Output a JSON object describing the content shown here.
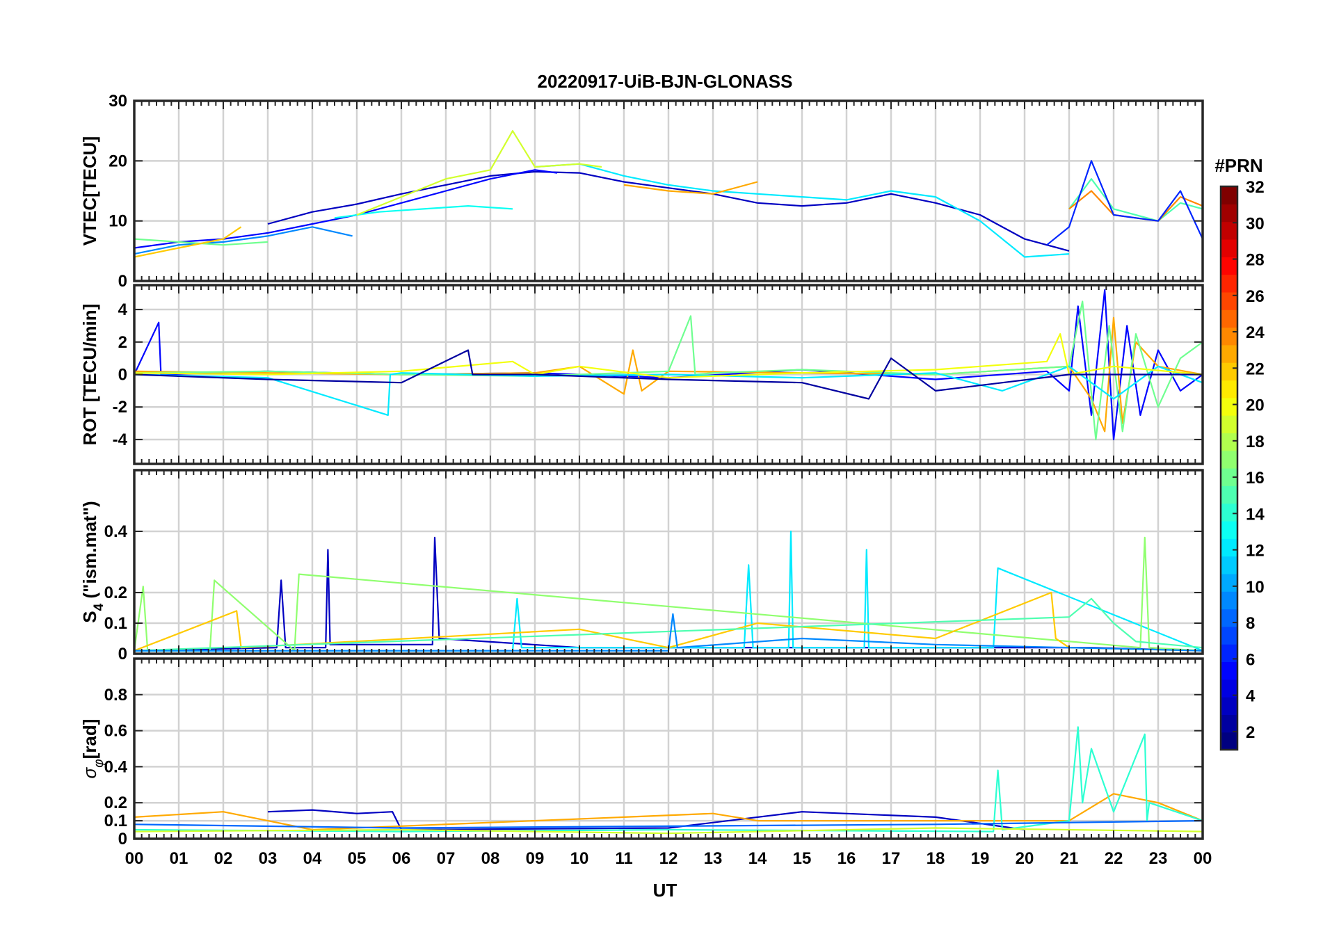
{
  "chart_data": {
    "type": "line",
    "title": "20220917-UiB-BJN-GLONASS",
    "xlabel": "UT",
    "x_tick_labels": [
      "00",
      "01",
      "02",
      "03",
      "04",
      "05",
      "06",
      "07",
      "08",
      "09",
      "10",
      "11",
      "12",
      "13",
      "14",
      "15",
      "16",
      "17",
      "18",
      "19",
      "20",
      "21",
      "22",
      "23",
      "00"
    ],
    "xlim": [
      0,
      24
    ],
    "grid": true,
    "colorbar": {
      "label": "#PRN",
      "range": [
        1,
        32
      ],
      "ticks": [
        2,
        4,
        6,
        8,
        10,
        12,
        14,
        16,
        18,
        20,
        22,
        24,
        26,
        28,
        30,
        32
      ],
      "colormap": "jet"
    },
    "panels": [
      {
        "id": "vtec",
        "ylabel": "VTEC[TECU]",
        "ylim": [
          0,
          30
        ],
        "yticks": [
          0,
          10,
          20,
          30
        ],
        "series": [
          {
            "prn": 3,
            "x": [
              3.0,
              4.0,
              5.0,
              6.0,
              7.0,
              8.0,
              9.0,
              10.0,
              11.0,
              12.0,
              13.0,
              14.0,
              15.0,
              16.0,
              17.0,
              18.0,
              19.0,
              20.0,
              21.0
            ],
            "values": [
              9.5,
              11.5,
              12.8,
              14.5,
              16.0,
              17.5,
              18.2,
              18.0,
              16.5,
              15.5,
              14.5,
              13.0,
              12.5,
              13.0,
              14.5,
              13.0,
              11.0,
              7.0,
              5.0
            ]
          },
          {
            "prn": 5,
            "x": [
              0.0,
              1.0,
              2.0,
              3.0,
              4.0,
              5.0,
              6.0,
              7.0,
              8.0,
              9.0,
              9.5
            ],
            "values": [
              5.5,
              6.5,
              7.0,
              8.0,
              9.5,
              11.0,
              13.0,
              15.0,
              17.0,
              18.5,
              18.0
            ]
          },
          {
            "prn": 9,
            "x": [
              0.0,
              1.0,
              2.0,
              3.0,
              4.0,
              4.9
            ],
            "values": [
              4.5,
              6.0,
              6.5,
              7.5,
              9.0,
              7.5
            ]
          },
          {
            "prn": 13,
            "x": [
              4.5,
              5.5,
              6.5,
              7.5,
              8.5
            ],
            "values": [
              10.5,
              11.5,
              12.0,
              12.5,
              12.0
            ]
          },
          {
            "prn": 12,
            "x": [
              9.0,
              10.0,
              11.0,
              12.0,
              13.0,
              14.0,
              15.0,
              16.0,
              17.0,
              18.0,
              19.0,
              20.0,
              21.0
            ],
            "values": [
              19.0,
              19.5,
              17.5,
              16.0,
              15.0,
              14.5,
              14.0,
              13.5,
              15.0,
              14.0,
              10.0,
              4.0,
              4.5
            ]
          },
          {
            "prn": 16,
            "x": [
              0.0,
              1.0,
              2.0,
              3.0
            ],
            "values": [
              7.0,
              6.5,
              6.0,
              6.5
            ]
          },
          {
            "prn": 19,
            "x": [
              5.0,
              6.0,
              7.0,
              8.0,
              8.5,
              9.0,
              10.0,
              10.5
            ],
            "values": [
              11.0,
              14.0,
              17.0,
              18.5,
              25.0,
              19.0,
              19.5,
              19.0
            ]
          },
          {
            "prn": 22,
            "x": [
              0.0,
              1.0,
              2.0,
              2.4
            ],
            "values": [
              4.0,
              5.5,
              7.0,
              9.0
            ]
          },
          {
            "prn": 23,
            "x": [
              11.0,
              12.0,
              13.0,
              14.0
            ],
            "values": [
              16.0,
              15.0,
              14.5,
              16.5
            ]
          },
          {
            "prn": 15,
            "x": [
              21.0,
              21.5,
              22.0,
              23.0,
              23.5,
              24.0
            ],
            "values": [
              12.0,
              17.0,
              12.0,
              10.0,
              13.0,
              12.0
            ]
          },
          {
            "prn": 24,
            "x": [
              21.0,
              21.5,
              22.0,
              23.0,
              23.5,
              24.0
            ],
            "values": [
              12.0,
              15.0,
              11.0,
              10.0,
              14.0,
              12.5
            ]
          },
          {
            "prn": 6,
            "x": [
              20.5,
              21.0,
              21.5,
              22.0,
              23.0,
              23.5,
              24.0
            ],
            "values": [
              6.0,
              9.0,
              20.0,
              11.0,
              10.0,
              15.0,
              7.0
            ]
          }
        ]
      },
      {
        "id": "rot",
        "ylabel": "ROT [TECU/min]",
        "ylim": [
          -5.5,
          5.5
        ],
        "yticks": [
          -4,
          -2,
          0,
          2,
          4
        ],
        "series": [
          {
            "prn": 5,
            "x": [
              0.0,
              0.55,
              0.6,
              3.0,
              6.0,
              9.0,
              12.0,
              15.0,
              18.0,
              20.5,
              21.0,
              21.2,
              21.5,
              21.8,
              22.0,
              22.3,
              22.6,
              23.0,
              23.5,
              24.0
            ],
            "values": [
              0.0,
              3.2,
              0.0,
              0.2,
              0.0,
              0.1,
              -0.2,
              0.3,
              -0.3,
              0.2,
              -1.0,
              4.2,
              -2.5,
              5.2,
              -4.0,
              3.0,
              -2.5,
              1.5,
              -1.0,
              0.0
            ]
          },
          {
            "prn": 23,
            "x": [
              0.0,
              3.0,
              6.0,
              9.0,
              10.0,
              11.0,
              11.2,
              11.4,
              12.0,
              15.0,
              18.0,
              21.0,
              21.5,
              21.8,
              22.0,
              22.2,
              22.5,
              23.0,
              24.0
            ],
            "values": [
              0.2,
              0.1,
              0.0,
              0.1,
              0.5,
              -1.2,
              1.5,
              -1.0,
              0.2,
              0.1,
              0.0,
              0.5,
              -1.5,
              -3.5,
              3.5,
              -3.0,
              2.0,
              0.5,
              0.0
            ]
          },
          {
            "prn": 16,
            "x": [
              0.0,
              3.0,
              6.0,
              9.0,
              12.0,
              12.5,
              12.6,
              13.0,
              15.0,
              18.0,
              21.0,
              21.3,
              21.6,
              21.9,
              22.2,
              22.5,
              23.0,
              23.5,
              24.0
            ],
            "values": [
              0.1,
              0.2,
              0.0,
              -0.1,
              0.2,
              3.6,
              0.0,
              0.1,
              0.3,
              0.0,
              0.5,
              4.5,
              -4.0,
              3.0,
              -3.5,
              2.5,
              -2.0,
              1.0,
              2.0
            ]
          },
          {
            "prn": 12,
            "x": [
              0.0,
              3.0,
              5.7,
              5.75,
              6.0,
              9.0,
              12.0,
              15.0,
              18.0,
              19.5,
              21.0,
              22.0,
              23.0,
              24.0
            ],
            "values": [
              0.0,
              -0.2,
              -2.5,
              0.0,
              0.1,
              -0.1,
              0.0,
              -0.2,
              0.1,
              -1.0,
              0.5,
              -1.5,
              0.5,
              -0.5
            ]
          },
          {
            "prn": 20,
            "x": [
              0.0,
              3.0,
              6.0,
              8.5,
              9.0,
              10.0,
              12.0,
              15.0,
              18.0,
              20.5,
              20.8,
              21.0,
              22.0,
              24.0
            ],
            "values": [
              0.1,
              0.0,
              0.2,
              0.8,
              0.0,
              0.5,
              -0.2,
              0.1,
              0.3,
              0.8,
              2.5,
              0.0,
              0.5,
              0.0
            ]
          },
          {
            "prn": 2,
            "x": [
              0.0,
              3.0,
              6.0,
              7.5,
              7.6,
              9.0,
              12.0,
              15.0,
              16.5,
              17.0,
              18.0,
              21.0,
              24.0
            ],
            "values": [
              0.0,
              -0.3,
              -0.5,
              1.5,
              0.0,
              0.0,
              -0.3,
              -0.5,
              -1.5,
              1.0,
              -1.0,
              0.0,
              0.0
            ]
          }
        ]
      },
      {
        "id": "s4",
        "ylabel": "S4 (\"ism.mat\")",
        "ylabel_main": "S",
        "ylabel_sub": "4",
        "ylabel_rest": " (\"ism.mat\")",
        "ylim": [
          0,
          0.6
        ],
        "yticks": [
          0,
          0.1,
          0.2,
          0.4
        ],
        "ytick_labels": [
          "0",
          "0.1",
          "0.2",
          "0.4"
        ],
        "series": [
          {
            "prn": 3,
            "x": [
              0.0,
              3.2,
              3.3,
              3.4,
              4.3,
              4.35,
              4.4,
              6.7,
              6.75,
              6.85,
              10.0,
              12.5,
              18.0,
              21.5,
              24.0
            ],
            "values": [
              0.01,
              0.02,
              0.24,
              0.02,
              0.02,
              0.34,
              0.03,
              0.03,
              0.38,
              0.05,
              0.02,
              0.02,
              0.02,
              0.02,
              0.01
            ]
          },
          {
            "prn": 12,
            "x": [
              0.0,
              8.5,
              8.6,
              8.7,
              13.7,
              13.8,
              13.9,
              14.7,
              14.75,
              14.8,
              16.4,
              16.45,
              16.5,
              19.3,
              19.4,
              24.0
            ],
            "values": [
              0.01,
              0.01,
              0.18,
              0.02,
              0.02,
              0.29,
              0.02,
              0.02,
              0.4,
              0.02,
              0.02,
              0.34,
              0.02,
              0.02,
              0.28,
              0.01
            ]
          },
          {
            "prn": 17,
            "x": [
              0.0,
              0.2,
              0.3,
              1.7,
              1.8,
              3.6,
              3.7,
              22.6,
              22.7,
              22.8,
              24.0
            ],
            "values": [
              0.01,
              0.22,
              0.01,
              0.01,
              0.24,
              0.01,
              0.26,
              0.02,
              0.38,
              0.02,
              0.01
            ]
          },
          {
            "prn": 22,
            "x": [
              0.0,
              2.3,
              2.4,
              10.0,
              12.0,
              14.0,
              18.0,
              20.6,
              20.7,
              21.0,
              24.0
            ],
            "values": [
              0.01,
              0.14,
              0.02,
              0.08,
              0.02,
              0.1,
              0.05,
              0.2,
              0.05,
              0.02,
              0.01
            ]
          },
          {
            "prn": 15,
            "x": [
              0.0,
              21.0,
              21.5,
              22.0,
              22.5,
              24.0
            ],
            "values": [
              0.01,
              0.12,
              0.18,
              0.1,
              0.04,
              0.02
            ]
          },
          {
            "prn": 9,
            "x": [
              0.0,
              12.0,
              12.1,
              12.2,
              15.0,
              18.0,
              24.0
            ],
            "values": [
              0.01,
              0.01,
              0.13,
              0.02,
              0.05,
              0.03,
              0.01
            ]
          }
        ]
      },
      {
        "id": "sigma",
        "ylabel": "σφ[rad]",
        "ylabel_main": "σ",
        "ylabel_sub": "φ",
        "ylabel_rest": "[rad]",
        "ylim": [
          0,
          1.0
        ],
        "yticks": [
          0,
          0.1,
          0.2,
          0.4,
          0.6,
          0.8
        ],
        "ytick_labels": [
          "0",
          "0.1",
          "0.2",
          "0.4",
          "0.6",
          "0.8"
        ],
        "series": [
          {
            "prn": 3,
            "x": [
              3.0,
              4.0,
              5.0,
              5.8,
              6.0,
              12.0,
              15.0,
              18.0,
              20.0
            ],
            "values": [
              0.15,
              0.16,
              0.14,
              0.15,
              0.05,
              0.06,
              0.15,
              0.12,
              0.05
            ]
          },
          {
            "prn": 23,
            "x": [
              0.0,
              2.0,
              4.0,
              11.0,
              13.0,
              14.0,
              21.0,
              22.0,
              23.0,
              24.0
            ],
            "values": [
              0.12,
              0.15,
              0.05,
              0.12,
              0.14,
              0.1,
              0.1,
              0.25,
              0.2,
              0.1
            ]
          },
          {
            "prn": 14,
            "x": [
              0.0,
              6.0,
              12.0,
              19.3,
              19.4,
              19.5,
              21.0,
              21.2,
              21.3,
              21.5,
              22.0,
              22.7,
              22.75,
              22.8,
              24.0
            ],
            "values": [
              0.05,
              0.04,
              0.05,
              0.04,
              0.38,
              0.05,
              0.1,
              0.62,
              0.2,
              0.5,
              0.15,
              0.58,
              0.1,
              0.2,
              0.1
            ]
          },
          {
            "prn": 8,
            "x": [
              0.0,
              6.0,
              12.0,
              18.0,
              24.0
            ],
            "values": [
              0.08,
              0.06,
              0.07,
              0.08,
              0.1
            ]
          },
          {
            "prn": 19,
            "x": [
              0.0,
              6.0,
              12.0,
              18.0,
              24.0
            ],
            "values": [
              0.04,
              0.05,
              0.03,
              0.06,
              0.04
            ]
          }
        ]
      }
    ]
  }
}
